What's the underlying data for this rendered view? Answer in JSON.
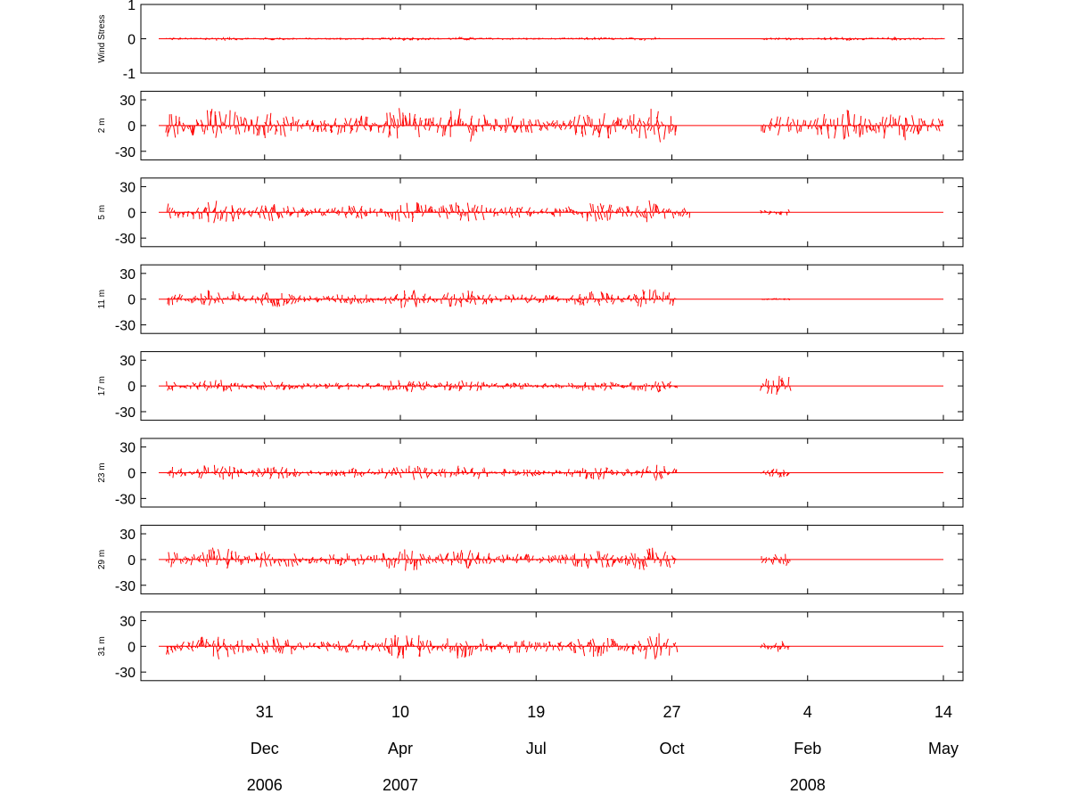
{
  "chart_data": {
    "type": "line",
    "xaxis": {
      "domain": [
        "2006-10-14",
        "2008-05-14"
      ],
      "ticks": [
        {
          "date": "2006-12-31",
          "day": "31",
          "month": "Dec",
          "year": "2006"
        },
        {
          "date": "2007-04-10",
          "day": "10",
          "month": "Apr",
          "year": "2007"
        },
        {
          "date": "2007-07-19",
          "day": "19",
          "month": "Jul",
          "year": ""
        },
        {
          "date": "2007-10-27",
          "day": "27",
          "month": "Oct",
          "year": ""
        },
        {
          "date": "2008-02-04",
          "day": "4",
          "month": "Feb",
          "year": "2008"
        },
        {
          "date": "2008-05-14",
          "day": "14",
          "month": "May",
          "year": ""
        }
      ]
    },
    "line_color": "#ff0000",
    "panels": [
      {
        "ylabel": "Wind Stress",
        "ylim": [
          -1,
          1
        ],
        "yticks": [
          "1",
          "0",
          "-1"
        ],
        "ytick_values": [
          1,
          0,
          -1
        ],
        "series": [
          {
            "start": "2006-10-20",
            "end": "2007-10-18",
            "amp": 0.06
          },
          {
            "start": "2008-01-01",
            "end": "2008-05-14",
            "amp": 0.06
          }
        ]
      },
      {
        "ylabel": "2 m",
        "ylim": [
          -40,
          40
        ],
        "yticks": [
          "30",
          "0",
          "-30"
        ],
        "ytick_values": [
          30,
          0,
          -30
        ],
        "series": [
          {
            "start": "2006-10-20",
            "end": "2007-10-31",
            "amp": 22
          },
          {
            "start": "2008-01-01",
            "end": "2008-05-14",
            "amp": 20
          }
        ]
      },
      {
        "ylabel": "5 m",
        "ylim": [
          -40,
          40
        ],
        "yticks": [
          "30",
          "0",
          "-30"
        ],
        "ytick_values": [
          30,
          0,
          -30
        ],
        "series": [
          {
            "start": "2006-10-20",
            "end": "2007-11-10",
            "amp": 14
          },
          {
            "start": "2008-01-01",
            "end": "2008-01-22",
            "amp": 6
          }
        ]
      },
      {
        "ylabel": "11 m",
        "ylim": [
          -40,
          40
        ],
        "yticks": [
          "30",
          "0",
          "-30"
        ],
        "ytick_values": [
          30,
          0,
          -30
        ],
        "series": [
          {
            "start": "2006-10-20",
            "end": "2007-10-31",
            "amp": 12
          },
          {
            "start": "2008-01-01",
            "end": "2008-01-22",
            "amp": 2
          }
        ]
      },
      {
        "ylabel": "17 m",
        "ylim": [
          -40,
          40
        ],
        "yticks": [
          "30",
          "0",
          "-30"
        ],
        "ytick_values": [
          30,
          0,
          -30
        ],
        "series": [
          {
            "start": "2006-10-20",
            "end": "2007-10-31",
            "amp": 8
          },
          {
            "start": "2008-01-01",
            "end": "2008-01-22",
            "amp": 22
          }
        ]
      },
      {
        "ylabel": "23 m",
        "ylim": [
          -40,
          40
        ],
        "yticks": [
          "30",
          "0",
          "-30"
        ],
        "ytick_values": [
          30,
          0,
          -30
        ],
        "series": [
          {
            "start": "2006-10-20",
            "end": "2007-10-31",
            "amp": 10
          },
          {
            "start": "2008-01-01",
            "end": "2008-01-22",
            "amp": 9
          }
        ]
      },
      {
        "ylabel": "29 m",
        "ylim": [
          -40,
          40
        ],
        "yticks": [
          "30",
          "0",
          "-30"
        ],
        "ytick_values": [
          30,
          0,
          -30
        ],
        "series": [
          {
            "start": "2006-10-20",
            "end": "2007-10-31",
            "amp": 14
          },
          {
            "start": "2008-01-01",
            "end": "2008-01-22",
            "amp": 12
          }
        ]
      },
      {
        "ylabel": "31 m",
        "ylim": [
          -40,
          40
        ],
        "yticks": [
          "30",
          "0",
          "-30"
        ],
        "ytick_values": [
          30,
          0,
          -30
        ],
        "series": [
          {
            "start": "2006-10-20",
            "end": "2007-10-31",
            "amp": 16
          },
          {
            "start": "2008-01-01",
            "end": "2008-01-22",
            "amp": 12
          }
        ]
      }
    ]
  }
}
